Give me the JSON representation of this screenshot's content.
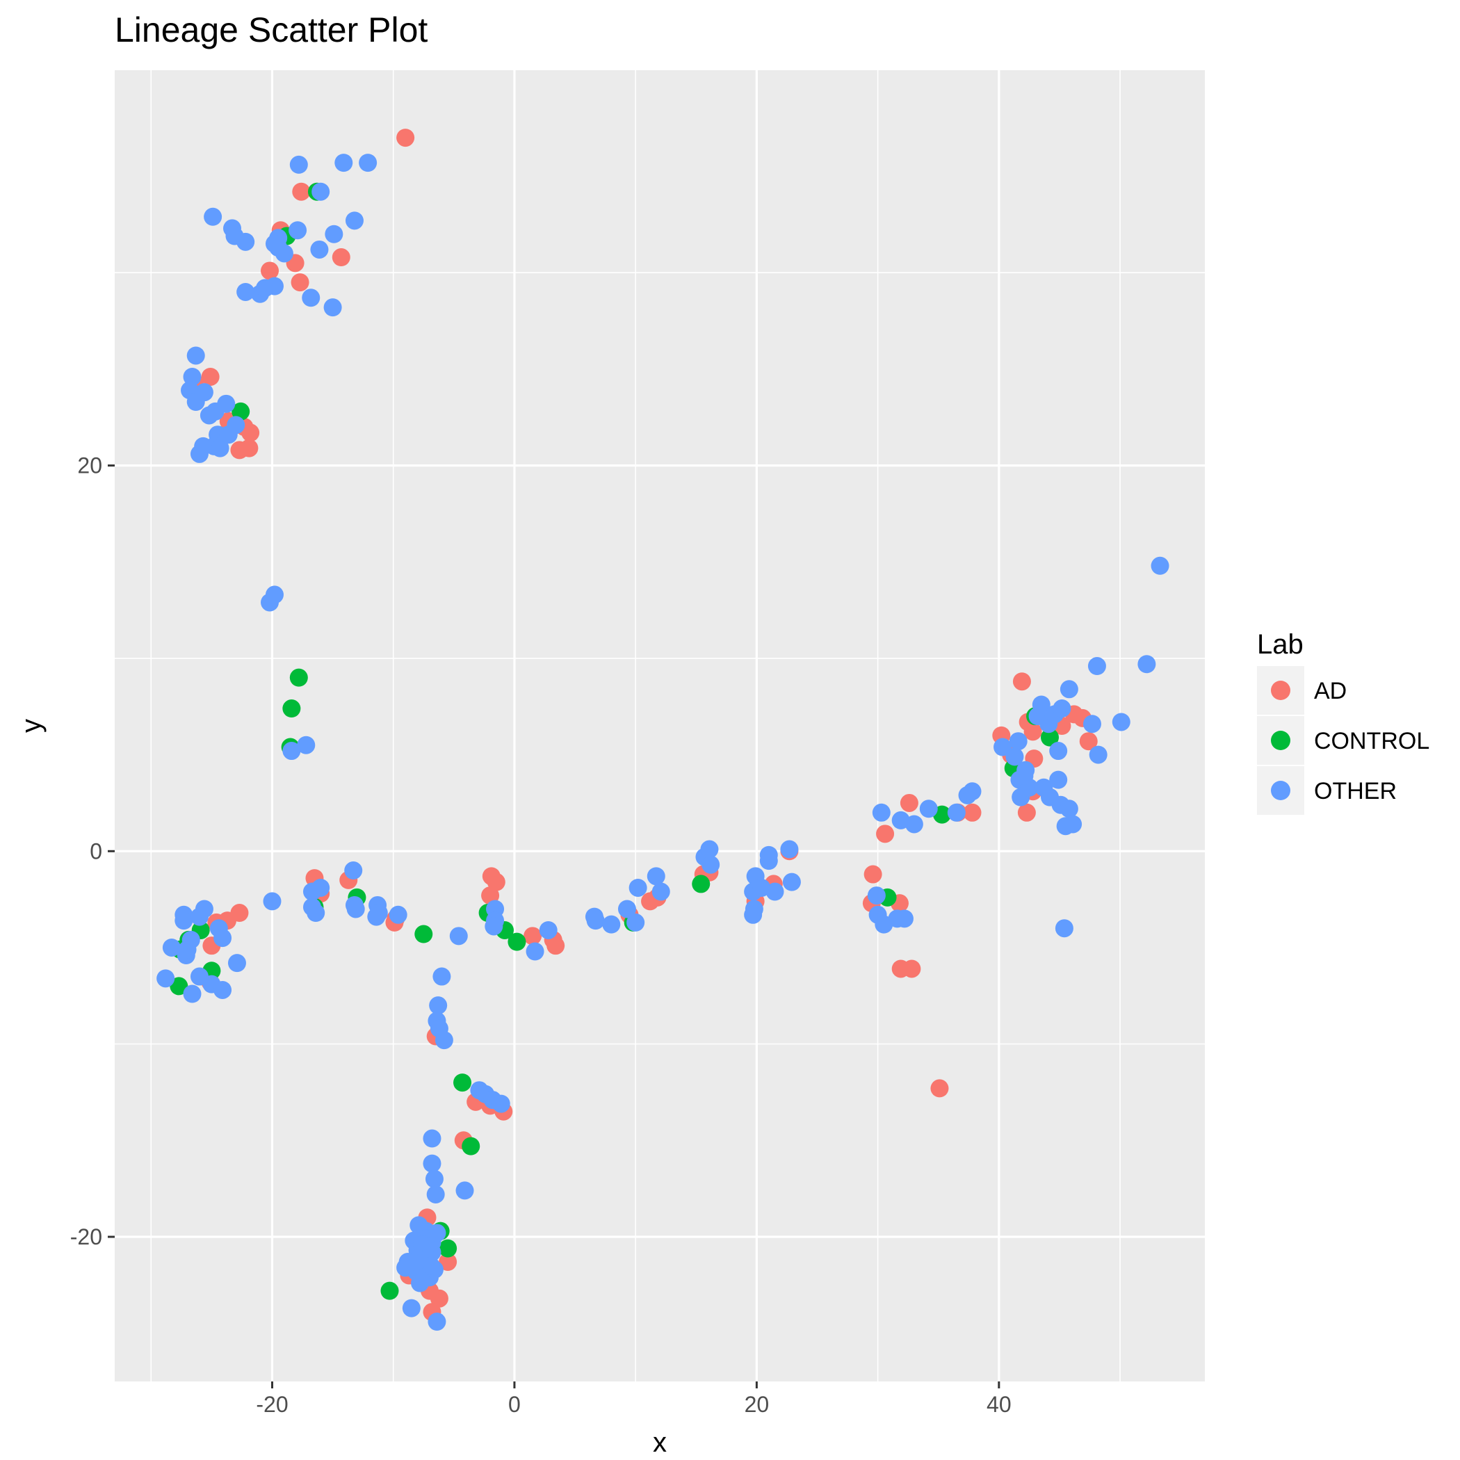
{
  "chart_data": {
    "type": "scatter",
    "title": "Lineage Scatter Plot",
    "xlabel": "x",
    "ylabel": "y",
    "xlim": [
      -33,
      57
    ],
    "ylim": [
      -27.5,
      40.5
    ],
    "x_ticks": [
      -20,
      0,
      20,
      40
    ],
    "y_ticks": [
      -20,
      0,
      20
    ],
    "x_tick_labels": [
      "-20",
      "0",
      "20",
      "40"
    ],
    "y_tick_labels": [
      "-20",
      "0",
      "20"
    ],
    "grid": true,
    "legend_title": "Lab",
    "legend_position": "right",
    "series": [
      {
        "name": "AD",
        "color": "#F8766D",
        "points": [
          [
            -9,
            37
          ],
          [
            -17.6,
            34.2
          ],
          [
            -19.3,
            32.2
          ],
          [
            -18.1,
            30.5
          ],
          [
            -14.3,
            30.8
          ],
          [
            -20.2,
            30.1
          ],
          [
            -17.7,
            29.5
          ],
          [
            -26.4,
            24.3
          ],
          [
            -25.1,
            24.6
          ],
          [
            -23.6,
            22.3
          ],
          [
            -22.3,
            22.0
          ],
          [
            -21.8,
            21.7
          ],
          [
            -21.9,
            20.9
          ],
          [
            -22.7,
            20.8
          ],
          [
            -24.6,
            -3.7
          ],
          [
            -23.7,
            -3.6
          ],
          [
            -22.7,
            -3.2
          ],
          [
            -25.0,
            -4.9
          ],
          [
            -25.1,
            -6.8
          ],
          [
            -16.5,
            -1.4
          ],
          [
            -16.0,
            -2.2
          ],
          [
            -13.7,
            -1.5
          ],
          [
            -9.8,
            -3.5
          ],
          [
            -9.9,
            -3.7
          ],
          [
            -1.9,
            -1.3
          ],
          [
            -1.5,
            -1.6
          ],
          [
            -2.0,
            -2.3
          ],
          [
            1.5,
            -4.4
          ],
          [
            3.2,
            -4.6
          ],
          [
            3.4,
            -4.9
          ],
          [
            9.5,
            -3.3
          ],
          [
            11.2,
            -2.6
          ],
          [
            11.8,
            -2.4
          ],
          [
            15.6,
            -1.2
          ],
          [
            16.1,
            -1.1
          ],
          [
            21.4,
            -1.7
          ],
          [
            22.7,
            0.0
          ],
          [
            19.9,
            -2.6
          ],
          [
            29.6,
            -1.2
          ],
          [
            29.5,
            -2.7
          ],
          [
            31.8,
            -2.7
          ],
          [
            31.9,
            -6.1
          ],
          [
            32.8,
            -6.1
          ],
          [
            35.1,
            -12.3
          ],
          [
            30.6,
            0.9
          ],
          [
            32.6,
            2.5
          ],
          [
            36.6,
            2.0
          ],
          [
            37.8,
            2.0
          ],
          [
            40.2,
            6.0
          ],
          [
            41.9,
            8.8
          ],
          [
            41.0,
            5.0
          ],
          [
            42.4,
            6.7
          ],
          [
            42.8,
            6.2
          ],
          [
            42.3,
            2.0
          ],
          [
            42.8,
            3.1
          ],
          [
            42.9,
            4.8
          ],
          [
            45.2,
            6.5
          ],
          [
            46.2,
            7.1
          ],
          [
            46.9,
            6.9
          ],
          [
            47.4,
            5.7
          ],
          [
            44.7,
            6.6
          ],
          [
            -5.5,
            -21.3
          ],
          [
            -6.2,
            -23.2
          ],
          [
            -6.8,
            -23.9
          ],
          [
            -7.0,
            -22.8
          ],
          [
            -7.2,
            -19.0
          ],
          [
            -8.7,
            -22.0
          ],
          [
            -4.2,
            -15.0
          ],
          [
            -6.5,
            -9.6
          ],
          [
            -2.0,
            -13.2
          ],
          [
            -0.9,
            -13.5
          ],
          [
            -3.2,
            -13.0
          ]
        ]
      },
      {
        "name": "CONTROL",
        "color": "#00BA38",
        "points": [
          [
            -16.3,
            34.2
          ],
          [
            -18.8,
            31.9
          ],
          [
            -22.6,
            22.8
          ],
          [
            -17.8,
            9.0
          ],
          [
            -18.4,
            7.4
          ],
          [
            -18.5,
            5.4
          ],
          [
            -27.7,
            -7.0
          ],
          [
            -27.6,
            -5.1
          ],
          [
            -26.9,
            -4.6
          ],
          [
            -25.9,
            -4.1
          ],
          [
            -25.0,
            -6.2
          ],
          [
            -16.5,
            -2.9
          ],
          [
            -13.0,
            -2.4
          ],
          [
            -7.5,
            -4.3
          ],
          [
            -2.2,
            -3.2
          ],
          [
            -0.8,
            -4.1
          ],
          [
            0.2,
            -4.7
          ],
          [
            9.8,
            -3.7
          ],
          [
            15.4,
            -1.7
          ],
          [
            30.8,
            -2.4
          ],
          [
            35.3,
            1.9
          ],
          [
            41.2,
            4.3
          ],
          [
            43.0,
            7.0
          ],
          [
            44.2,
            5.9
          ],
          [
            -4.3,
            -12.0
          ],
          [
            -3.6,
            -15.3
          ],
          [
            -6.1,
            -19.7
          ],
          [
            -5.5,
            -20.6
          ],
          [
            -10.3,
            -22.8
          ]
        ]
      },
      {
        "name": "OTHER",
        "color": "#619CFF",
        "points": [
          [
            -17.8,
            35.6
          ],
          [
            -14.1,
            35.7
          ],
          [
            -12.1,
            35.7
          ],
          [
            -16.0,
            34.2
          ],
          [
            -24.9,
            32.9
          ],
          [
            -23.3,
            32.3
          ],
          [
            -23.1,
            31.9
          ],
          [
            -13.2,
            32.7
          ],
          [
            -14.9,
            32.0
          ],
          [
            -17.9,
            32.2
          ],
          [
            -19.5,
            31.8
          ],
          [
            -19.5,
            31.3
          ],
          [
            -22.2,
            31.6
          ],
          [
            -19.0,
            31.0
          ],
          [
            -16.1,
            31.2
          ],
          [
            -19.8,
            31.5
          ],
          [
            -21.0,
            28.9
          ],
          [
            -22.2,
            29.0
          ],
          [
            -20.6,
            29.2
          ],
          [
            -19.8,
            29.3
          ],
          [
            -16.8,
            28.7
          ],
          [
            -15.0,
            28.2
          ],
          [
            -26.3,
            25.7
          ],
          [
            -26.6,
            24.6
          ],
          [
            -26.8,
            23.9
          ],
          [
            -26.3,
            23.3
          ],
          [
            -25.6,
            23.8
          ],
          [
            -24.7,
            22.8
          ],
          [
            -23.8,
            23.2
          ],
          [
            -25.2,
            22.6
          ],
          [
            -24.5,
            21.6
          ],
          [
            -24.8,
            21.0
          ],
          [
            -25.7,
            21.0
          ],
          [
            -26.0,
            20.6
          ],
          [
            -24.3,
            20.9
          ],
          [
            -23.6,
            21.6
          ],
          [
            -23.0,
            22.1
          ],
          [
            -20.2,
            12.9
          ],
          [
            -19.8,
            13.3
          ],
          [
            -18.4,
            5.2
          ],
          [
            -17.2,
            5.5
          ],
          [
            -27.3,
            -3.3
          ],
          [
            -27.3,
            -3.6
          ],
          [
            -26.0,
            -3.4
          ],
          [
            -25.6,
            -3.0
          ],
          [
            -24.4,
            -4.0
          ],
          [
            -24.1,
            -4.5
          ],
          [
            -26.7,
            -4.6
          ],
          [
            -28.3,
            -5.0
          ],
          [
            -27.1,
            -5.4
          ],
          [
            -26.0,
            -6.5
          ],
          [
            -25.0,
            -6.9
          ],
          [
            -26.6,
            -7.4
          ],
          [
            -24.1,
            -7.2
          ],
          [
            -22.9,
            -5.8
          ],
          [
            -28.8,
            -6.6
          ],
          [
            -27.0,
            -5.1
          ],
          [
            -20.0,
            -2.6
          ],
          [
            -16.7,
            -2.1
          ],
          [
            -16.0,
            -1.9
          ],
          [
            -16.7,
            -2.9
          ],
          [
            -16.4,
            -3.2
          ],
          [
            -13.3,
            -1.0
          ],
          [
            -13.2,
            -2.8
          ],
          [
            -13.1,
            -3.0
          ],
          [
            -11.3,
            -2.8
          ],
          [
            -11.2,
            -3.2
          ],
          [
            -11.4,
            -3.4
          ],
          [
            -9.6,
            -3.3
          ],
          [
            -4.6,
            -4.4
          ],
          [
            -1.6,
            -3.0
          ],
          [
            -1.6,
            -3.6
          ],
          [
            -1.7,
            -3.9
          ],
          [
            1.7,
            -5.2
          ],
          [
            2.8,
            -4.1
          ],
          [
            6.6,
            -3.4
          ],
          [
            6.7,
            -3.6
          ],
          [
            8.0,
            -3.8
          ],
          [
            9.3,
            -3.0
          ],
          [
            10.0,
            -3.7
          ],
          [
            10.2,
            -1.9
          ],
          [
            11.7,
            -1.3
          ],
          [
            12.1,
            -2.1
          ],
          [
            15.7,
            -0.3
          ],
          [
            16.1,
            0.1
          ],
          [
            16.2,
            -0.7
          ],
          [
            19.9,
            -1.3
          ],
          [
            19.7,
            -2.1
          ],
          [
            20.4,
            -1.9
          ],
          [
            19.8,
            -3.0
          ],
          [
            19.7,
            -3.3
          ],
          [
            21.0,
            -0.2
          ],
          [
            21.0,
            -0.5
          ],
          [
            21.5,
            -2.1
          ],
          [
            22.7,
            0.1
          ],
          [
            22.9,
            -1.6
          ],
          [
            29.9,
            -2.3
          ],
          [
            30.0,
            -3.3
          ],
          [
            30.5,
            -3.8
          ],
          [
            31.6,
            -3.5
          ],
          [
            32.2,
            -3.5
          ],
          [
            30.3,
            2.0
          ],
          [
            31.9,
            1.6
          ],
          [
            33.0,
            1.4
          ],
          [
            34.2,
            2.2
          ],
          [
            36.5,
            2.0
          ],
          [
            37.4,
            2.9
          ],
          [
            37.8,
            3.1
          ],
          [
            40.3,
            5.4
          ],
          [
            41.3,
            4.9
          ],
          [
            41.6,
            5.7
          ],
          [
            41.7,
            3.7
          ],
          [
            41.8,
            2.8
          ],
          [
            42.2,
            4.2
          ],
          [
            42.5,
            3.3
          ],
          [
            42.1,
            3.9
          ],
          [
            43.2,
            7.0
          ],
          [
            43.5,
            7.6
          ],
          [
            44.1,
            6.6
          ],
          [
            44.6,
            7.1
          ],
          [
            45.2,
            7.4
          ],
          [
            45.8,
            8.4
          ],
          [
            44.9,
            5.2
          ],
          [
            44.9,
            3.7
          ],
          [
            44.2,
            2.8
          ],
          [
            43.7,
            3.3
          ],
          [
            45.1,
            2.4
          ],
          [
            45.5,
            1.3
          ],
          [
            45.8,
            2.2
          ],
          [
            46.1,
            1.4
          ],
          [
            47.7,
            6.6
          ],
          [
            48.1,
            9.6
          ],
          [
            48.2,
            5.0
          ],
          [
            50.1,
            6.7
          ],
          [
            52.2,
            9.7
          ],
          [
            53.3,
            14.8
          ],
          [
            45.4,
            -4.0
          ],
          [
            -6.0,
            -6.5
          ],
          [
            -6.3,
            -8.0
          ],
          [
            -6.4,
            -8.8
          ],
          [
            -6.2,
            -9.2
          ],
          [
            -5.8,
            -9.8
          ],
          [
            -2.9,
            -12.4
          ],
          [
            -2.4,
            -12.6
          ],
          [
            -1.8,
            -12.9
          ],
          [
            -1.1,
            -13.1
          ],
          [
            -6.8,
            -14.9
          ],
          [
            -6.8,
            -16.2
          ],
          [
            -6.6,
            -17.0
          ],
          [
            -6.5,
            -17.8
          ],
          [
            -4.1,
            -17.6
          ],
          [
            -7.9,
            -19.4
          ],
          [
            -7.3,
            -19.7
          ],
          [
            -8.3,
            -20.2
          ],
          [
            -8.0,
            -20.7
          ],
          [
            -7.5,
            -21.0
          ],
          [
            -6.8,
            -20.8
          ],
          [
            -7.3,
            -20.1
          ],
          [
            -8.8,
            -21.3
          ],
          [
            -8.1,
            -21.8
          ],
          [
            -7.8,
            -22.4
          ],
          [
            -7.0,
            -22.1
          ],
          [
            -6.6,
            -21.7
          ],
          [
            -6.8,
            -20.3
          ],
          [
            -6.4,
            -19.8
          ],
          [
            -9.0,
            -21.6
          ],
          [
            -8.5,
            -23.7
          ],
          [
            -6.4,
            -24.4
          ],
          [
            -7.6,
            -20.4
          ],
          [
            -7.2,
            -21.1
          ],
          [
            -6.9,
            -21.5
          ],
          [
            -7.9,
            -21.2
          ]
        ]
      }
    ]
  }
}
